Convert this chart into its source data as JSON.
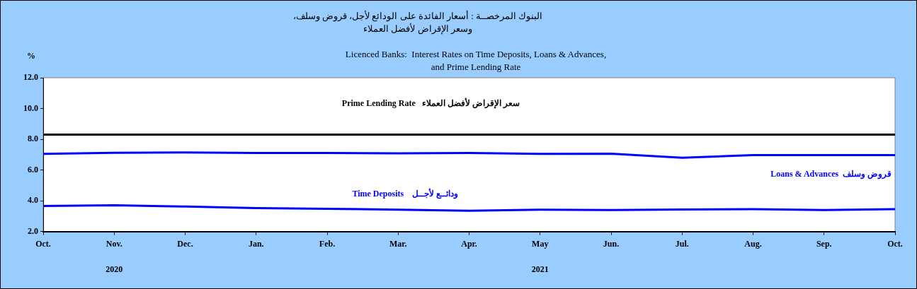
{
  "chart_data": {
    "type": "line",
    "title": "البنوك المرخصــة : أسعار الفائدة على الودائع لأجل، قروض وسلف،\nوسعر الإقراض لأفضل العملاء",
    "subtitle": "Licenced Banks:  Interest Rates on Time Deposits, Loans & Advances,\nand Prime Lending Rate",
    "ylabel": "%",
    "categories": [
      "Oct.",
      "Nov.",
      "Dec.",
      "Jan.",
      "Feb.",
      "Mar.",
      "Apr.",
      "May",
      "Jun.",
      "Jul.",
      "Aug.",
      "Sep.",
      "Oct."
    ],
    "series": [
      {
        "name": "Prime Lending Rate   سعر الإقراض لأفضل العملاء",
        "color": "#000000",
        "values": [
          8.3,
          8.3,
          8.3,
          8.3,
          8.3,
          8.3,
          8.3,
          8.3,
          8.3,
          8.3,
          8.3,
          8.3,
          8.3
        ]
      },
      {
        "name": "Loans & Advances  قروض وسلف",
        "color": "#0000ff",
        "values": [
          7.05,
          7.12,
          7.14,
          7.1,
          7.11,
          7.08,
          7.1,
          7.05,
          7.06,
          6.8,
          6.97,
          6.97,
          6.97
        ]
      },
      {
        "name": "Time Deposits    ودائــع لأجــل",
        "color": "#0000ff",
        "values": [
          3.66,
          3.7,
          3.62,
          3.52,
          3.48,
          3.42,
          3.35,
          3.42,
          3.4,
          3.43,
          3.45,
          3.4,
          3.45
        ]
      }
    ],
    "annotations": [
      "2020",
      "2021"
    ],
    "ylim": [
      2,
      12
    ],
    "yticks": [
      {
        "value": 2,
        "label": "2.0"
      },
      {
        "value": 4,
        "label": "4.0"
      },
      {
        "value": 6,
        "label": "6.0"
      },
      {
        "value": 8,
        "label": "8.0"
      },
      {
        "value": 10,
        "label": "10.0"
      },
      {
        "value": 12,
        "label": "12.0"
      }
    ],
    "grid": false,
    "legend": false,
    "marker": "none",
    "line_style": "solid"
  }
}
